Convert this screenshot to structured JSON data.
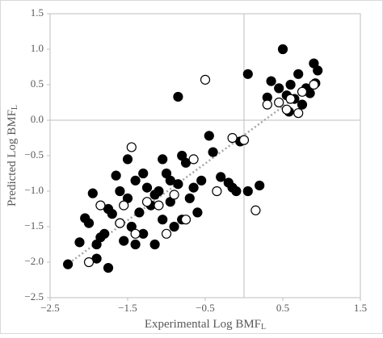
{
  "chart_data": {
    "type": "scatter",
    "x_label": "Experimental Log BMF",
    "x_label_sub": "L",
    "y_label": "Predicted Log BMF",
    "y_label_sub": "L",
    "xlim": [
      -2.5,
      1.5
    ],
    "xticks": [
      {
        "value": -2.5,
        "label": "−2.5"
      },
      {
        "value": -1.5,
        "label": "−1.5"
      },
      {
        "value": -0.5,
        "label": "−0.5"
      },
      0.5,
      1.5
    ],
    "ylim": [
      -2.5,
      1.5
    ],
    "yticks": [
      {
        "value": -2.5,
        "label": "−2.5"
      },
      {
        "value": -2,
        "label": "−2.0"
      },
      {
        "value": -1.5,
        "label": "−1.5"
      },
      {
        "value": -1,
        "label": "−1.0"
      },
      {
        "value": -0.5,
        "label": "−0.5"
      },
      {
        "value": 0,
        "label": "0.0"
      },
      0.5,
      {
        "value": 1,
        "label": "1.0"
      },
      1.5
    ],
    "reference_lines": {
      "x": 0,
      "y": 0,
      "color": "#bfbfbf"
    },
    "trendline": {
      "x": [
        -2.3,
        0.95
      ],
      "y": [
        -2.05,
        0.55
      ],
      "color": "#a6a6a6",
      "dotted": true
    },
    "series": [
      {
        "marker": "filled",
        "color": "#000000",
        "x": [
          -2.27,
          -2.12,
          -2.05,
          -2.0,
          -1.95,
          -1.9,
          -1.85,
          -1.8,
          -1.75,
          -1.7,
          -1.65,
          -1.6,
          -1.55,
          -1.5,
          -1.45,
          -1.4,
          -1.35,
          -1.3,
          -1.25,
          -1.2,
          -1.15,
          -1.1,
          -1.05,
          -1.0,
          -0.95,
          -0.9,
          -0.85,
          -0.8,
          -0.75,
          -0.7,
          -0.65,
          -0.6,
          -0.55,
          -0.45,
          -0.4,
          -0.3,
          -0.2,
          -0.15,
          -0.1,
          -0.05,
          0.05,
          0.05,
          -0.85,
          0.2,
          0.3,
          0.35,
          0.45,
          0.5,
          0.55,
          0.58,
          0.6,
          0.65,
          0.7,
          0.75,
          0.8,
          0.85,
          0.9,
          0.95,
          0.92,
          -1.75,
          -1.6,
          -1.5,
          -1.3,
          -1.15,
          -1.05,
          -0.95,
          -0.8,
          -1.4,
          -1.9
        ],
        "y": [
          -2.03,
          -1.72,
          -1.38,
          -1.45,
          -1.03,
          -1.95,
          -1.65,
          -1.6,
          -2.08,
          -1.32,
          -0.78,
          -1.45,
          -1.7,
          -1.1,
          -1.5,
          -0.85,
          -1.3,
          -1.6,
          -0.95,
          -1.2,
          -1.75,
          -1.0,
          -1.4,
          -0.75,
          -1.15,
          -1.5,
          -0.9,
          -0.5,
          -0.6,
          -1.1,
          -0.95,
          -1.3,
          -0.85,
          -0.22,
          -0.45,
          -0.8,
          -0.88,
          -0.95,
          -1.0,
          -0.3,
          -1.0,
          0.65,
          0.33,
          -0.92,
          0.32,
          0.55,
          0.45,
          1.0,
          0.35,
          0.12,
          0.5,
          0.3,
          0.65,
          0.22,
          0.45,
          0.38,
          0.8,
          0.7,
          0.52,
          -1.25,
          -1.0,
          -0.55,
          -0.75,
          -1.05,
          -0.55,
          -0.85,
          -1.4,
          -1.75,
          -1.75
        ]
      },
      {
        "marker": "open",
        "color": "#000000",
        "x": [
          -2.0,
          -1.85,
          -1.6,
          -1.45,
          -1.4,
          -1.25,
          -1.0,
          -0.9,
          -0.75,
          -0.65,
          -0.5,
          -0.35,
          -0.15,
          0.0,
          0.15,
          0.3,
          0.45,
          0.55,
          0.6,
          0.7,
          0.75,
          0.9,
          -1.55,
          -1.1
        ],
        "y": [
          -2.0,
          -1.2,
          -1.45,
          -0.38,
          -1.6,
          -1.15,
          -1.6,
          -1.05,
          -1.4,
          -0.55,
          0.57,
          -1.0,
          -0.25,
          -0.28,
          -1.27,
          0.22,
          0.25,
          0.15,
          0.3,
          0.1,
          0.4,
          0.5,
          -1.2,
          -1.2
        ]
      }
    ]
  }
}
